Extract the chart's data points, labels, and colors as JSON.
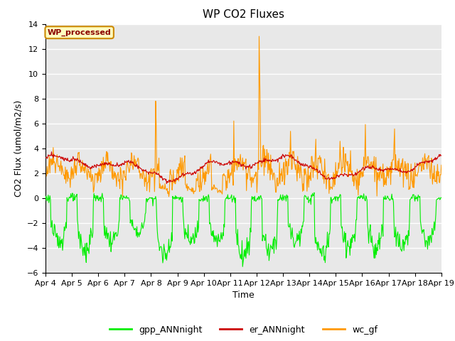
{
  "title": "WP CO2 Fluxes",
  "ylabel": "CO2 Flux (umol/m2/s)",
  "xlabel": "Time",
  "ylim": [
    -6,
    14
  ],
  "yticks": [
    -6,
    -4,
    -2,
    0,
    2,
    4,
    6,
    8,
    10,
    12,
    14
  ],
  "xtick_labels": [
    "Apr 4",
    "Apr 5",
    "Apr 6",
    "Apr 7",
    "Apr 8",
    "Apr 9",
    "Apr 10",
    "Apr 11",
    "Apr 12",
    "Apr 13",
    "Apr 14",
    "Apr 15",
    "Apr 16",
    "Apr 17",
    "Apr 18",
    "Apr 19"
  ],
  "n_days": 15,
  "n_per_day": 48,
  "gpp_color": "#00EE00",
  "er_color": "#CC0000",
  "wc_color": "#FF9900",
  "plot_bg": "#E8E8E8",
  "fig_bg": "#FFFFFF",
  "legend_label": "WP_processed",
  "legend_text_color": "#8B0000",
  "legend_bg": "#FFFFC0",
  "legend_edge": "#CC8800",
  "series_labels": [
    "gpp_ANNnight",
    "er_ANNnight",
    "wc_gf"
  ],
  "linewidth": 0.8,
  "title_fontsize": 11,
  "axis_fontsize": 9,
  "tick_fontsize": 8
}
